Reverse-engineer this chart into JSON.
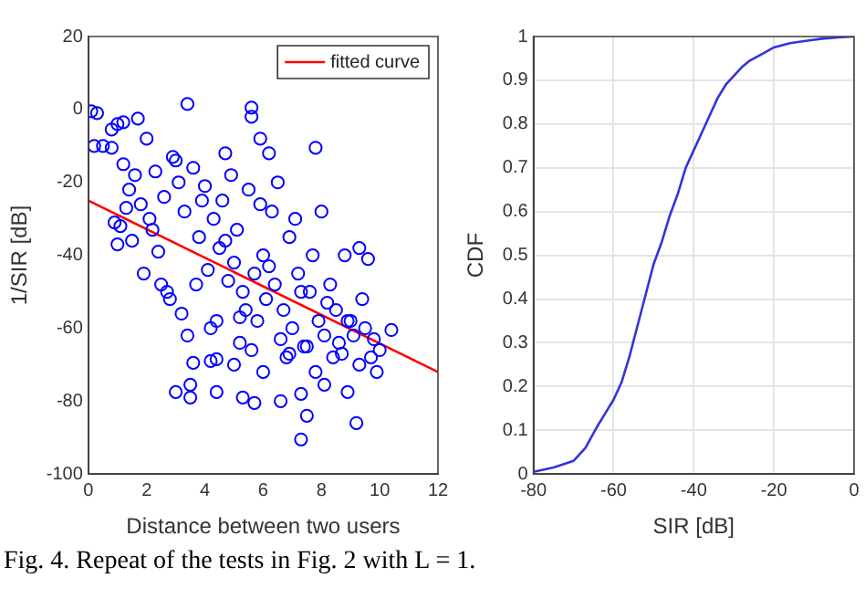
{
  "chart_data": [
    {
      "type": "scatter",
      "xlabel": "Distance between two users",
      "ylabel": "1/SIR [dB]",
      "xlim": [
        0,
        12
      ],
      "xticks": [
        0,
        2,
        4,
        6,
        8,
        10,
        12
      ],
      "ylim": [
        -100,
        20
      ],
      "yticks": [
        -100,
        -80,
        -60,
        -40,
        -20,
        0,
        20
      ],
      "grid": false,
      "legend": "top right",
      "annotations": [
        "Fig. 4.  Repeat of the tests in Fig. 2 with L = 1."
      ],
      "series": [
        {
          "type": "scatter",
          "color": "#0000ff",
          "marker": "circle",
          "x": [
            0.1,
            0.3,
            3.4,
            5.6,
            5.6,
            1.7,
            1.0,
            1.2,
            0.8,
            2.0,
            0.2,
            0.5,
            0.8,
            1.2,
            5.9,
            7.8,
            6.2,
            4.7,
            9.3,
            9.6,
            10.4,
            9.2,
            7.3,
            7.5,
            3.0,
            3.5,
            3.5,
            5.3,
            5.7,
            6.6,
            7.3,
            8.1,
            8.9,
            4.4,
            3.6,
            4.2,
            4.4,
            2.5,
            1.0,
            1.1,
            0.9,
            1.4,
            1.6,
            1.8,
            2.1,
            2.3,
            2.6,
            2.9,
            3.1,
            3.3,
            3.6,
            3.8,
            4.0,
            4.1,
            4.3,
            4.5,
            4.6,
            4.8,
            5.0,
            5.1,
            5.3,
            5.4,
            5.5,
            5.7,
            5.8,
            6.0,
            6.1,
            6.3,
            6.4,
            6.6,
            6.7,
            6.9,
            7.0,
            7.2,
            7.4,
            7.6,
            7.7,
            7.9,
            8.1,
            8.3,
            8.5,
            8.7,
            8.9,
            9.1,
            9.3,
            9.5,
            9.8,
            10.0,
            1.3,
            1.9,
            2.4,
            2.8,
            3.2,
            3.7,
            4.2,
            4.7,
            5.2,
            5.6,
            6.2,
            6.8,
            7.3,
            7.8,
            8.2,
            8.6,
            9.0,
            9.4,
            9.7,
            2.2,
            3.0,
            3.9,
            4.9,
            5.9,
            6.5,
            7.1,
            8.0,
            8.8,
            1.5,
            2.7,
            3.4,
            4.4,
            5.0,
            6.0,
            7.5,
            8.4,
            9.9,
            5.2,
            6.9
          ],
          "values": [
            -0.5,
            -1,
            1.5,
            0.5,
            -2,
            -2.5,
            -4,
            -3.5,
            -5.5,
            -8,
            -10,
            -10,
            -10.5,
            -15,
            -8,
            -10.5,
            -12,
            -12,
            -38,
            -41,
            -60.5,
            -86,
            -90.5,
            -84,
            -77.5,
            -79,
            -75.5,
            -79,
            -80.5,
            -80,
            -78,
            -75.5,
            -77.5,
            -77.5,
            -69.5,
            -69,
            -68.5,
            -48,
            -37,
            -32,
            -31,
            -22,
            -18,
            -26,
            -30,
            -17,
            -24,
            -13,
            -20,
            -28,
            -16,
            -35,
            -21,
            -44,
            -30,
            -38,
            -25,
            -47,
            -42,
            -33,
            -50,
            -55,
            -22,
            -45,
            -58,
            -40,
            -52,
            -28,
            -48,
            -63,
            -55,
            -35,
            -60,
            -45,
            -65,
            -50,
            -40,
            -58,
            -62,
            -48,
            -55,
            -67,
            -58,
            -62,
            -70,
            -60,
            -63,
            -66,
            -27,
            -45,
            -39,
            -52,
            -56,
            -48,
            -60,
            -36,
            -57,
            -66,
            -43,
            -68,
            -50,
            -72,
            -53,
            -64,
            -58,
            -52,
            -68,
            -33,
            -14,
            -25,
            -18,
            -26,
            -20,
            -30,
            -28,
            -40,
            -36,
            -50,
            -62,
            -58,
            -70,
            -72,
            -65,
            -68,
            -72,
            -64,
            -67
          ]
        },
        {
          "type": "line",
          "name": "fitted curve",
          "color": "#ff0000",
          "marker": "none",
          "x": [
            0,
            12
          ],
          "values": [
            -25,
            -72
          ]
        }
      ]
    },
    {
      "type": "line",
      "xlabel": "SIR [dB]",
      "ylabel": "CDF",
      "xlim": [
        -80,
        0
      ],
      "xticks": [
        -80,
        -60,
        -40,
        -20,
        0
      ],
      "ylim": [
        0,
        1
      ],
      "yticks": [
        0,
        0.1,
        0.2,
        0.3,
        0.4,
        0.5,
        0.6,
        0.7,
        0.8,
        0.9,
        1
      ],
      "grid": true,
      "marker": "none",
      "x": [
        -80,
        -75,
        -70,
        -67,
        -64,
        -62,
        -60,
        -58,
        -56,
        -54,
        -52,
        -50,
        -48,
        -46,
        -44,
        -42,
        -40,
        -38,
        -36,
        -34,
        -32,
        -30,
        -28,
        -26,
        -24,
        -22,
        -20,
        -16,
        -12,
        -8,
        -4,
        0
      ],
      "values": [
        0.005,
        0.015,
        0.03,
        0.06,
        0.11,
        0.14,
        0.17,
        0.21,
        0.27,
        0.34,
        0.41,
        0.48,
        0.53,
        0.59,
        0.64,
        0.7,
        0.74,
        0.78,
        0.82,
        0.86,
        0.89,
        0.91,
        0.93,
        0.945,
        0.955,
        0.965,
        0.975,
        0.985,
        0.99,
        0.995,
        0.998,
        1
      ],
      "color": "#3333dd"
    }
  ]
}
